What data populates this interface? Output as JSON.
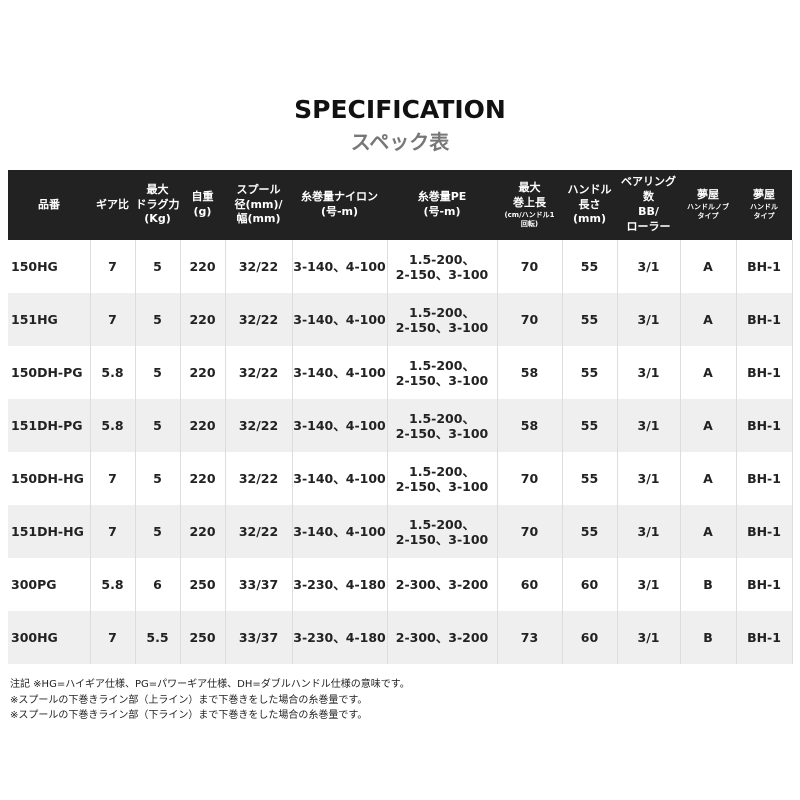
{
  "title": "SPECIFICATION",
  "subtitle": "スペック表",
  "columns": [
    {
      "label": "品番"
    },
    {
      "label": "ギア比"
    },
    {
      "label": "最大\nドラグ力\n(Kg)"
    },
    {
      "label": "自重\n(g)"
    },
    {
      "label": "スプール\n径(mm)/\n幅(mm)"
    },
    {
      "label": "糸巻量ナイロン\n(号-m)"
    },
    {
      "label": "糸巻量PE\n(号-m)"
    },
    {
      "label": "最大\n巻上長",
      "sub": "(cm/ハンドル1\n回転)"
    },
    {
      "label": "ハンドル\n長さ\n(mm)"
    },
    {
      "label": "ベアリング数\nBB/\nローラー"
    },
    {
      "label": "夢屋",
      "sub": "ハンドルノブ\nタイプ"
    },
    {
      "label": "夢屋",
      "sub": "ハンドル\nタイプ"
    }
  ],
  "rows": [
    [
      "150HG",
      "7",
      "5",
      "220",
      "32/22",
      "3-140、4-100",
      "1.5-200、\n2-150、3-100",
      "70",
      "55",
      "3/1",
      "A",
      "BH-1"
    ],
    [
      "151HG",
      "7",
      "5",
      "220",
      "32/22",
      "3-140、4-100",
      "1.5-200、\n2-150、3-100",
      "70",
      "55",
      "3/1",
      "A",
      "BH-1"
    ],
    [
      "150DH-PG",
      "5.8",
      "5",
      "220",
      "32/22",
      "3-140、4-100",
      "1.5-200、\n2-150、3-100",
      "58",
      "55",
      "3/1",
      "A",
      "BH-1"
    ],
    [
      "151DH-PG",
      "5.8",
      "5",
      "220",
      "32/22",
      "3-140、4-100",
      "1.5-200、\n2-150、3-100",
      "58",
      "55",
      "3/1",
      "A",
      "BH-1"
    ],
    [
      "150DH-HG",
      "7",
      "5",
      "220",
      "32/22",
      "3-140、4-100",
      "1.5-200、\n2-150、3-100",
      "70",
      "55",
      "3/1",
      "A",
      "BH-1"
    ],
    [
      "151DH-HG",
      "7",
      "5",
      "220",
      "32/22",
      "3-140、4-100",
      "1.5-200、\n2-150、3-100",
      "70",
      "55",
      "3/1",
      "A",
      "BH-1"
    ],
    [
      "300PG",
      "5.8",
      "6",
      "250",
      "33/37",
      "3-230、4-180",
      "2-300、3-200",
      "60",
      "60",
      "3/1",
      "B",
      "BH-1"
    ],
    [
      "300HG",
      "7",
      "5.5",
      "250",
      "33/37",
      "3-230、4-180",
      "2-300、3-200",
      "73",
      "60",
      "3/1",
      "B",
      "BH-1"
    ]
  ],
  "notes": [
    "注記 ※HG=ハイギア仕様、PG=パワーギア仕様、DH=ダブルハンドル仕様の意味です。",
    "※スプールの下巻きライン部（上ライン）まで下巻きをした場合の糸巻量です。",
    "※スプールの下巻きライン部（下ライン）まで下巻きをした場合の糸巻量です。"
  ]
}
